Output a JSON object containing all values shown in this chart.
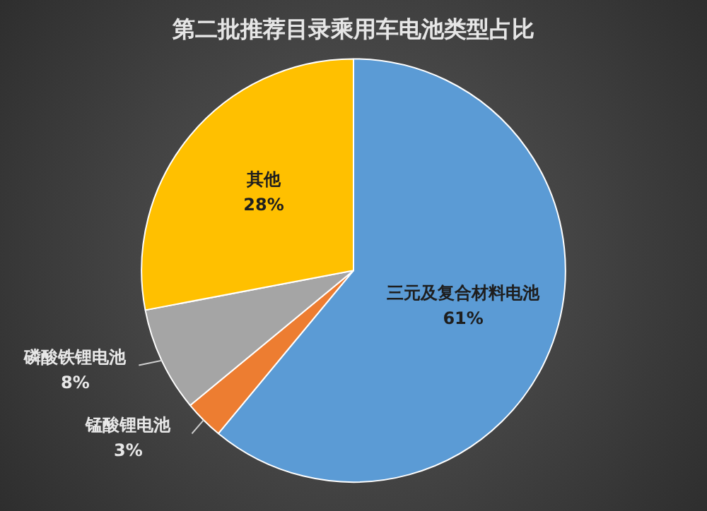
{
  "chart_data": {
    "type": "pie",
    "title": "第二批推荐目录乘用车电池类型占比",
    "categories": [
      "三元及复合材料电池",
      "锰酸锂电池",
      "磷酸铁锂电池",
      "其他"
    ],
    "values": [
      61,
      3,
      8,
      28
    ],
    "colors": [
      "#5b9bd5",
      "#ed7d31",
      "#a5a5a5",
      "#ffc000"
    ],
    "value_labels": [
      "61%",
      "3%",
      "8%",
      "28%"
    ],
    "legend": false
  }
}
